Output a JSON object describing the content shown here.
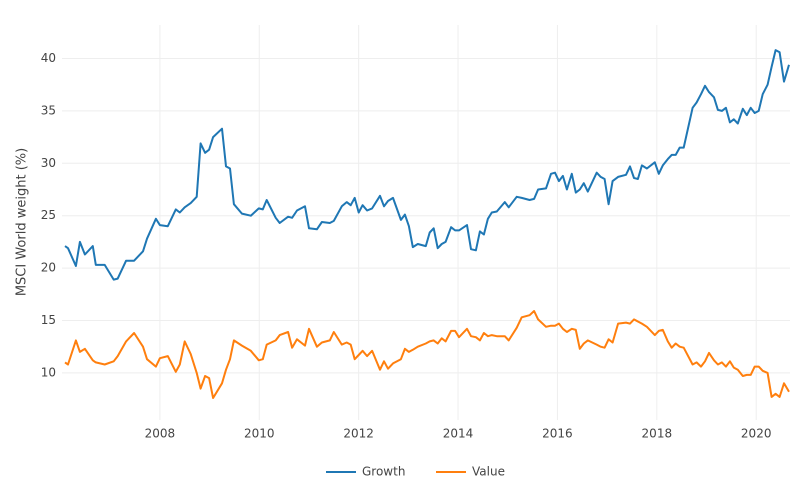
{
  "chart_data": {
    "type": "line",
    "y_label": "MSCI World weight (%)",
    "grid": true,
    "legend": "bottom",
    "xlim": [
      2006.03,
      2020.68
    ],
    "xticks": [
      2008,
      2010,
      2012,
      2014,
      2016,
      2018,
      2020
    ],
    "ylim": [
      5.5,
      43.2
    ],
    "yticks": [
      10,
      15,
      20,
      25,
      30,
      35,
      40
    ],
    "x": [
      2006.09,
      2006.15,
      2006.31,
      2006.39,
      2006.49,
      2006.65,
      2006.71,
      2006.89,
      2007.07,
      2007.15,
      2007.32,
      2007.48,
      2007.66,
      2007.74,
      2007.92,
      2008.0,
      2008.16,
      2008.32,
      2008.4,
      2008.5,
      2008.62,
      2008.74,
      2008.82,
      2008.91,
      2008.99,
      2009.07,
      2009.25,
      2009.33,
      2009.41,
      2009.49,
      2009.65,
      2009.83,
      2009.99,
      2010.07,
      2010.15,
      2010.33,
      2010.41,
      2010.58,
      2010.66,
      2010.76,
      2010.92,
      2011.0,
      2011.16,
      2011.26,
      2011.42,
      2011.5,
      2011.66,
      2011.76,
      2011.84,
      2011.92,
      2012.0,
      2012.08,
      2012.17,
      2012.27,
      2012.43,
      2012.51,
      2012.59,
      2012.69,
      2012.85,
      2012.93,
      2013.01,
      2013.09,
      2013.19,
      2013.35,
      2013.43,
      2013.51,
      2013.59,
      2013.67,
      2013.75,
      2013.86,
      2013.94,
      2014.02,
      2014.18,
      2014.26,
      2014.36,
      2014.44,
      2014.52,
      2014.6,
      2014.68,
      2014.78,
      2014.94,
      2015.02,
      2015.18,
      2015.28,
      2015.44,
      2015.53,
      2015.61,
      2015.77,
      2015.87,
      2015.95,
      2016.03,
      2016.11,
      2016.19,
      2016.29,
      2016.37,
      2016.45,
      2016.53,
      2016.61,
      2016.79,
      2016.87,
      2016.95,
      2017.03,
      2017.11,
      2017.22,
      2017.38,
      2017.46,
      2017.54,
      2017.62,
      2017.7,
      2017.8,
      2017.96,
      2018.04,
      2018.12,
      2018.22,
      2018.3,
      2018.38,
      2018.46,
      2018.54,
      2018.72,
      2018.8,
      2018.89,
      2018.97,
      2019.05,
      2019.15,
      2019.23,
      2019.31,
      2019.39,
      2019.47,
      2019.55,
      2019.63,
      2019.73,
      2019.81,
      2019.89,
      2019.97,
      2020.05,
      2020.13,
      2020.23,
      2020.31,
      2020.39,
      2020.47,
      2020.56,
      2020.66
    ],
    "series": [
      {
        "name": "Growth",
        "color": "#1f77b4",
        "values": [
          22.1,
          21.9,
          20.2,
          22.5,
          21.3,
          22.1,
          20.3,
          20.3,
          18.9,
          19.0,
          20.7,
          20.7,
          21.6,
          22.8,
          24.7,
          24.1,
          24.0,
          25.6,
          25.3,
          25.8,
          26.2,
          26.8,
          31.9,
          31.0,
          31.3,
          32.5,
          33.3,
          29.7,
          29.5,
          26.1,
          25.2,
          25.0,
          25.7,
          25.6,
          26.5,
          24.8,
          24.3,
          24.9,
          24.8,
          25.5,
          25.9,
          23.8,
          23.7,
          24.4,
          24.3,
          24.5,
          25.9,
          26.3,
          26.0,
          26.7,
          25.3,
          26.0,
          25.5,
          25.7,
          26.9,
          25.9,
          26.4,
          26.7,
          24.6,
          25.1,
          24.0,
          22.0,
          22.3,
          22.1,
          23.4,
          23.8,
          21.9,
          22.3,
          22.5,
          23.9,
          23.6,
          23.6,
          24.1,
          21.8,
          21.7,
          23.5,
          23.2,
          24.7,
          25.3,
          25.4,
          26.3,
          25.8,
          26.8,
          26.7,
          26.5,
          26.6,
          27.5,
          27.6,
          29.0,
          29.1,
          28.3,
          28.8,
          27.5,
          29.0,
          27.2,
          27.5,
          28.1,
          27.3,
          29.1,
          28.7,
          28.5,
          26.1,
          28.3,
          28.7,
          28.9,
          29.7,
          28.6,
          28.5,
          29.8,
          29.5,
          30.1,
          29.0,
          29.8,
          30.4,
          30.8,
          30.8,
          31.5,
          31.5,
          35.3,
          35.8,
          36.6,
          37.4,
          36.8,
          36.3,
          35.1,
          35.0,
          35.3,
          33.9,
          34.2,
          33.8,
          35.2,
          34.6,
          35.3,
          34.8,
          35.0,
          36.6,
          37.5,
          39.2,
          40.8,
          40.6,
          37.8,
          39.4
        ]
      },
      {
        "name": "Value",
        "color": "#ff7f0e",
        "values": [
          11.0,
          10.8,
          13.1,
          12.0,
          12.3,
          11.2,
          11.0,
          10.8,
          11.1,
          11.6,
          13.0,
          13.8,
          12.5,
          11.3,
          10.6,
          11.4,
          11.6,
          10.1,
          10.8,
          13.0,
          11.8,
          10.0,
          8.5,
          9.7,
          9.5,
          7.6,
          9.0,
          10.3,
          11.3,
          13.1,
          12.6,
          12.1,
          11.2,
          11.3,
          12.7,
          13.1,
          13.6,
          13.9,
          12.4,
          13.2,
          12.6,
          14.2,
          12.5,
          12.9,
          13.1,
          13.9,
          12.7,
          12.9,
          12.7,
          11.3,
          11.7,
          12.1,
          11.6,
          12.1,
          10.3,
          11.1,
          10.4,
          10.9,
          11.3,
          12.3,
          12.0,
          12.2,
          12.5,
          12.8,
          13.0,
          13.1,
          12.8,
          13.3,
          13.0,
          14.0,
          14.0,
          13.4,
          14.2,
          13.5,
          13.4,
          13.1,
          13.8,
          13.5,
          13.6,
          13.5,
          13.5,
          13.1,
          14.3,
          15.3,
          15.5,
          15.9,
          15.1,
          14.4,
          14.5,
          14.5,
          14.7,
          14.2,
          13.9,
          14.2,
          14.1,
          12.3,
          12.8,
          13.1,
          12.7,
          12.5,
          12.4,
          13.2,
          12.9,
          14.7,
          14.8,
          14.7,
          15.1,
          14.9,
          14.7,
          14.4,
          13.6,
          14.0,
          14.1,
          13.0,
          12.4,
          12.8,
          12.5,
          12.4,
          10.8,
          11.0,
          10.6,
          11.1,
          11.9,
          11.2,
          10.8,
          11.0,
          10.6,
          11.1,
          10.5,
          10.3,
          9.7,
          9.8,
          9.8,
          10.6,
          10.6,
          10.2,
          10.0,
          7.7,
          8.0,
          7.7,
          9.0,
          8.2
        ]
      }
    ]
  }
}
